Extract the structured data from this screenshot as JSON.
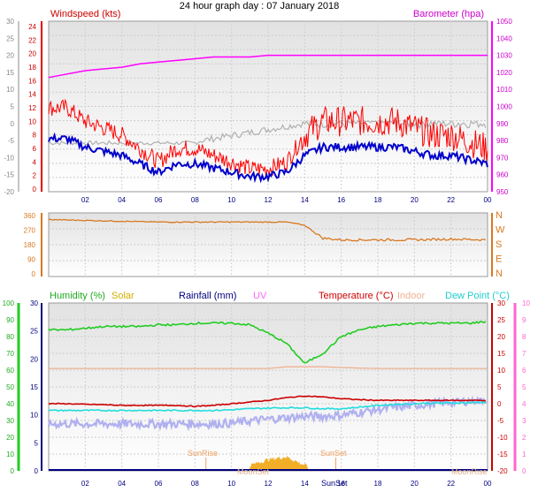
{
  "title": "24 hour graph day : 07 January 2018",
  "x_ticks": [
    "02",
    "04",
    "06",
    "08",
    "10",
    "12",
    "14",
    "16",
    "18",
    "20",
    "22",
    "00"
  ],
  "colors": {
    "wind_speed": "#ff0000",
    "wind_avg": "#0000cc",
    "gust_bg": "#b0b0b0",
    "barometer": "#ff00ff",
    "direction": "#d87820",
    "humidity": "#22cc22",
    "solar": "#f0a000",
    "rainfall": "#000080",
    "uv": "#ff66ff",
    "temperature": "#cc0000",
    "indoor": "#f0b090",
    "dew_point": "#22dddd",
    "dew_band": "#b0b0f0",
    "sun_event": "#f0a060",
    "moon_event": "#e0b090"
  },
  "wind_panel": {
    "left_label": "Windspeed (kts)",
    "right_label": "Barometer (hpa)",
    "outer_left_ticks": [
      "30",
      "25",
      "20",
      "15",
      "10",
      "5",
      "0",
      "-5",
      "-10",
      "-15",
      "-20"
    ],
    "inner_left_ticks": [
      "24",
      "22",
      "20",
      "18",
      "16",
      "14",
      "12",
      "10",
      "8",
      "6",
      "4",
      "2",
      "0"
    ],
    "right_ticks": [
      "1050",
      "1040",
      "1030",
      "1020",
      "1010",
      "1000",
      "990",
      "980",
      "970",
      "960",
      "950"
    ]
  },
  "dir_panel": {
    "left_ticks": [
      "360",
      "270",
      "180",
      "90",
      "0"
    ],
    "right_ticks": [
      "N",
      "W",
      "S",
      "E",
      "N"
    ]
  },
  "temp_panel": {
    "labels": {
      "humidity": "Humidity (%)",
      "solar": "Solar",
      "rainfall": "Rainfall (mm)",
      "uv": "UV",
      "temperature": "Temperature (°C)",
      "indoor": "Indoor",
      "dew_point": "Dew Point (°C)"
    },
    "outer_left_ticks": [
      "100",
      "90",
      "80",
      "70",
      "60",
      "50",
      "40",
      "30",
      "20",
      "10",
      "0"
    ],
    "inner_left_ticks": [
      "30",
      "25",
      "20",
      "15",
      "10",
      "5",
      "0"
    ],
    "right_inner_ticks": [
      "30",
      "25",
      "20",
      "15",
      "10",
      "5",
      "0",
      "-5",
      "-10",
      "-15",
      "-20"
    ],
    "right_outer_ticks": [
      "10",
      "9",
      "8",
      "7",
      "6",
      "5",
      "4",
      "3",
      "2",
      "1",
      "0"
    ],
    "sunrise": "SunRise",
    "sunset": "SunSet",
    "sunset_axis": "SunSet",
    "moonrise": "MoonRise",
    "moonset": "MoonSet"
  },
  "chart_data": [
    {
      "type": "line",
      "title": "24 hour graph day : 07 January 2018",
      "xlabel": "",
      "ylabel": "Windspeed (kts)",
      "x": [
        0,
        1,
        2,
        3,
        4,
        5,
        6,
        7,
        8,
        9,
        10,
        11,
        12,
        13,
        14,
        15,
        16,
        17,
        18,
        19,
        20,
        21,
        22,
        23,
        24
      ],
      "series": [
        {
          "name": "Windspeed (kts)",
          "values": [
            12,
            12,
            10,
            9,
            8,
            6,
            4,
            6,
            6,
            5,
            4,
            3,
            3,
            4,
            8,
            10,
            10,
            10,
            10,
            10,
            9,
            8,
            8,
            7,
            6
          ]
        },
        {
          "name": "Barometer (hpa)",
          "values": [
            1017,
            1019,
            1021,
            1022,
            1023,
            1025,
            1026,
            1027,
            1028,
            1029,
            1029,
            1029,
            1030,
            1030,
            1030,
            1030,
            1030,
            1030,
            1030,
            1030,
            1030,
            1030,
            1030,
            1030,
            1030
          ]
        }
      ],
      "ylim": [
        0,
        24
      ],
      "y2lim": [
        950,
        1050
      ]
    },
    {
      "type": "line",
      "xlabel": "",
      "ylabel": "",
      "x": [
        0,
        2,
        4,
        6,
        8,
        10,
        12,
        13,
        14,
        15,
        16,
        18,
        20,
        22,
        24
      ],
      "series": [
        {
          "name": "",
          "values": [
            335,
            330,
            325,
            320,
            320,
            320,
            320,
            320,
            300,
            220,
            210,
            210,
            210,
            215,
            210
          ]
        }
      ],
      "ylim": [
        0,
        360
      ]
    },
    {
      "type": "line",
      "xlabel": "",
      "ylabel": "",
      "x": [
        0,
        1,
        2,
        3,
        4,
        5,
        6,
        7,
        8,
        9,
        10,
        11,
        12,
        13,
        14,
        15,
        16,
        17,
        18,
        19,
        20,
        21,
        22,
        23,
        24
      ],
      "series": [
        {
          "name": "Humidity (%)",
          "values": [
            84,
            84,
            85,
            86,
            86,
            86,
            87,
            87,
            88,
            88,
            88,
            87,
            82,
            76,
            64,
            70,
            80,
            84,
            86,
            87,
            88,
            88,
            88,
            88,
            89
          ]
        },
        {
          "name": "Temperature (°C)",
          "values": [
            0.0,
            0.0,
            -0.2,
            -0.3,
            -0.5,
            -0.5,
            -0.5,
            -0.5,
            -0.8,
            -0.5,
            0.0,
            0.5,
            1.0,
            1.8,
            2.3,
            2.0,
            1.5,
            1.2,
            1.0,
            1.0,
            1.0,
            1.0,
            1.0,
            1.0,
            1.0
          ]
        },
        {
          "name": "Dew Point (°C)",
          "values": [
            -2.0,
            -2.0,
            -2.0,
            -2.0,
            -2.0,
            -2.0,
            -2.0,
            -2.0,
            -2.0,
            -2.0,
            -1.8,
            -1.5,
            -1.3,
            -1.2,
            -1.2,
            -1.5,
            -1.5,
            -1.0,
            -0.5,
            -0.2,
            0.0,
            0.2,
            0.2,
            0.3,
            0.5
          ]
        },
        {
          "name": "Indoor",
          "values": [
            10.5,
            10.5,
            10.5,
            10.5,
            10.5,
            10.5,
            10.5,
            10.5,
            10.5,
            10.5,
            10.5,
            10.5,
            10.5,
            11.0,
            11.0,
            11.0,
            10.8,
            10.6,
            10.5,
            10.5,
            10.5,
            10.5,
            10.5,
            10.5,
            10.5
          ]
        },
        {
          "name": "Solar",
          "values": [
            0,
            0,
            0,
            0,
            0,
            0,
            0,
            0,
            0,
            0,
            0,
            2,
            4,
            5,
            2,
            0,
            0,
            0,
            0,
            0,
            0,
            0,
            0,
            0,
            0
          ]
        }
      ],
      "ylim": [
        0,
        100
      ]
    }
  ]
}
